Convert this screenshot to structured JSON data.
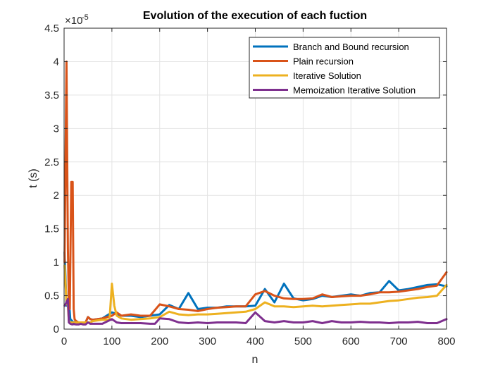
{
  "chart_data": {
    "type": "line",
    "title": "Evolution of the execution of each fuction",
    "xlabel": "n",
    "ylabel": "t (s)",
    "y_exponent_label": "×10",
    "y_exponent_power": "-5",
    "xlim": [
      0,
      800
    ],
    "ylim": [
      0,
      4.5
    ],
    "xticks": [
      "0",
      "100",
      "200",
      "300",
      "400",
      "500",
      "600",
      "700",
      "800"
    ],
    "yticks": [
      "0",
      "0.5",
      "1",
      "1.5",
      "2",
      "2.5",
      "3",
      "3.5",
      "4",
      "4.5"
    ],
    "grid": true,
    "legend_position": "top-right",
    "series": [
      {
        "name": "Branch and Bound recursion",
        "color": "#0072BD",
        "x": [
          1,
          5,
          10,
          13,
          17,
          20,
          25,
          30,
          35,
          40,
          45,
          50,
          55,
          60,
          80,
          100,
          110,
          120,
          140,
          160,
          180,
          200,
          220,
          240,
          260,
          280,
          300,
          320,
          340,
          360,
          380,
          400,
          420,
          440,
          460,
          480,
          500,
          520,
          540,
          560,
          580,
          600,
          620,
          640,
          660,
          680,
          700,
          720,
          740,
          760,
          780,
          800
        ],
        "y": [
          1.15,
          0.35,
          0.45,
          0.15,
          0.12,
          0.1,
          0.12,
          0.1,
          0.1,
          0.1,
          0.1,
          0.18,
          0.15,
          0.14,
          0.16,
          0.25,
          0.23,
          0.2,
          0.2,
          0.18,
          0.2,
          0.22,
          0.36,
          0.3,
          0.54,
          0.3,
          0.32,
          0.32,
          0.34,
          0.34,
          0.34,
          0.35,
          0.6,
          0.4,
          0.68,
          0.46,
          0.43,
          0.45,
          0.5,
          0.48,
          0.5,
          0.52,
          0.5,
          0.54,
          0.55,
          0.72,
          0.58,
          0.6,
          0.63,
          0.66,
          0.67,
          0.64
        ]
      },
      {
        "name": "Plain recursion",
        "color": "#D95319",
        "x": [
          1,
          5,
          8,
          10,
          12,
          15,
          18,
          20,
          22,
          25,
          30,
          35,
          40,
          45,
          50,
          55,
          60,
          80,
          100,
          110,
          120,
          140,
          160,
          180,
          200,
          220,
          240,
          260,
          280,
          300,
          320,
          340,
          360,
          380,
          400,
          420,
          440,
          460,
          480,
          500,
          520,
          540,
          560,
          580,
          600,
          620,
          640,
          660,
          680,
          700,
          720,
          740,
          760,
          780,
          800
        ],
        "y": [
          1.0,
          4.0,
          1.2,
          0.4,
          0.3,
          2.2,
          2.2,
          0.3,
          0.15,
          0.12,
          0.1,
          0.1,
          0.1,
          0.1,
          0.18,
          0.15,
          0.14,
          0.16,
          0.2,
          0.25,
          0.2,
          0.22,
          0.2,
          0.2,
          0.37,
          0.34,
          0.3,
          0.29,
          0.27,
          0.3,
          0.32,
          0.33,
          0.34,
          0.34,
          0.52,
          0.57,
          0.5,
          0.46,
          0.45,
          0.45,
          0.46,
          0.52,
          0.48,
          0.49,
          0.5,
          0.5,
          0.52,
          0.55,
          0.55,
          0.56,
          0.58,
          0.6,
          0.63,
          0.65,
          0.85
        ]
      },
      {
        "name": "Iterative Solution",
        "color": "#EDB120",
        "x": [
          1,
          5,
          8,
          10,
          13,
          17,
          20,
          25,
          30,
          35,
          40,
          45,
          50,
          55,
          60,
          80,
          95,
          100,
          105,
          110,
          120,
          140,
          160,
          180,
          200,
          220,
          240,
          260,
          280,
          300,
          320,
          340,
          360,
          380,
          400,
          420,
          440,
          460,
          480,
          500,
          520,
          540,
          560,
          580,
          600,
          620,
          640,
          660,
          680,
          700,
          720,
          740,
          760,
          780,
          800
        ],
        "y": [
          0.95,
          0.4,
          0.35,
          0.12,
          0.1,
          0.1,
          0.1,
          0.1,
          0.1,
          0.1,
          0.1,
          0.1,
          0.1,
          0.1,
          0.12,
          0.14,
          0.14,
          0.68,
          0.35,
          0.2,
          0.16,
          0.14,
          0.15,
          0.16,
          0.18,
          0.26,
          0.22,
          0.21,
          0.22,
          0.22,
          0.23,
          0.24,
          0.25,
          0.26,
          0.3,
          0.4,
          0.34,
          0.34,
          0.33,
          0.34,
          0.35,
          0.34,
          0.35,
          0.36,
          0.37,
          0.38,
          0.38,
          0.4,
          0.42,
          0.43,
          0.45,
          0.47,
          0.48,
          0.5,
          0.66
        ]
      },
      {
        "name": "Memoization Iterative Solution",
        "color": "#7E2F8E",
        "x": [
          1,
          5,
          8,
          10,
          13,
          17,
          20,
          25,
          30,
          35,
          40,
          45,
          50,
          55,
          60,
          80,
          100,
          110,
          120,
          140,
          160,
          180,
          190,
          200,
          220,
          240,
          260,
          280,
          300,
          320,
          340,
          360,
          380,
          400,
          420,
          440,
          460,
          480,
          500,
          520,
          540,
          560,
          580,
          600,
          620,
          640,
          660,
          680,
          700,
          720,
          740,
          760,
          780,
          800
        ],
        "y": [
          0.35,
          0.4,
          0.45,
          0.1,
          0.08,
          0.07,
          0.08,
          0.07,
          0.07,
          0.08,
          0.07,
          0.07,
          0.1,
          0.08,
          0.08,
          0.08,
          0.15,
          0.1,
          0.09,
          0.09,
          0.09,
          0.08,
          0.08,
          0.16,
          0.15,
          0.1,
          0.09,
          0.1,
          0.09,
          0.1,
          0.1,
          0.1,
          0.09,
          0.25,
          0.12,
          0.1,
          0.12,
          0.1,
          0.1,
          0.12,
          0.09,
          0.12,
          0.1,
          0.1,
          0.11,
          0.1,
          0.1,
          0.09,
          0.1,
          0.1,
          0.11,
          0.09,
          0.09,
          0.15
        ]
      }
    ]
  }
}
